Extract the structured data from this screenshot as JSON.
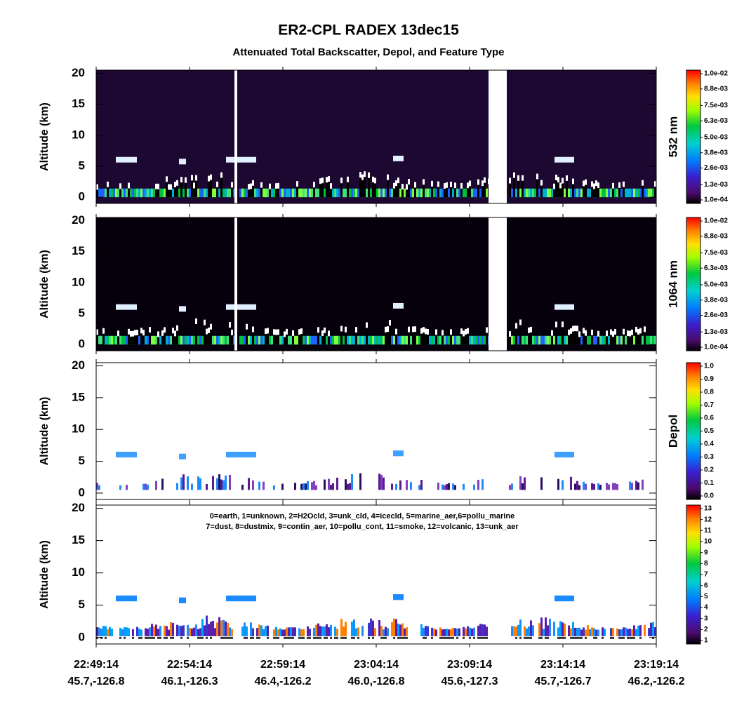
{
  "title": "ER2-CPL RADEX 13dec15",
  "subtitle": "Attenuated Total Backscatter, Depol, and Feature Type",
  "x_axis": {
    "times": [
      "22:49:14",
      "22:54:14",
      "22:59:14",
      "23:04:14",
      "23:09:14",
      "23:14:14",
      "23:19:14"
    ],
    "locations": [
      "45.7,-126.8",
      "46.1,-126.3",
      "46.4,-126.2",
      "46.0,-126.8",
      "45.6,-127.3",
      "45.7,-126.7",
      "46.2,-126.2"
    ]
  },
  "chart_data": [
    {
      "type": "heatmap",
      "ylabel": "Altitude (km)",
      "ylim": [
        -1,
        20.5
      ],
      "yticks": [
        0,
        5,
        10,
        15,
        20
      ],
      "colorbar_label": "532 nm",
      "clim": [
        0.0001,
        0.01
      ],
      "colorbar_ticks": [
        {
          "value": 0.01,
          "label": "1.0e-02"
        },
        {
          "value": 0.0088,
          "label": "8.8e-03"
        },
        {
          "value": 0.0075,
          "label": "7.5e-03"
        },
        {
          "value": 0.0063,
          "label": "6.3e-03"
        },
        {
          "value": 0.005,
          "label": "5.0e-03"
        },
        {
          "value": 0.0038,
          "label": "3.8e-03"
        },
        {
          "value": 0.0026,
          "label": "2.6e-03"
        },
        {
          "value": 0.0013,
          "label": "1.3e-03"
        },
        {
          "value": 0.0001,
          "label": "1.0e-04"
        }
      ]
    },
    {
      "type": "heatmap",
      "ylabel": "Altitude (km)",
      "ylim": [
        -1,
        20.5
      ],
      "yticks": [
        0,
        5,
        10,
        15,
        20
      ],
      "colorbar_label": "1064 nm",
      "clim": [
        0.0001,
        0.01
      ],
      "colorbar_ticks": [
        {
          "value": 0.01,
          "label": "1.0e-02"
        },
        {
          "value": 0.0088,
          "label": "8.8e-03"
        },
        {
          "value": 0.0075,
          "label": "7.5e-03"
        },
        {
          "value": 0.0063,
          "label": "6.3e-03"
        },
        {
          "value": 0.005,
          "label": "5.0e-03"
        },
        {
          "value": 0.0038,
          "label": "3.8e-03"
        },
        {
          "value": 0.0026,
          "label": "2.6e-03"
        },
        {
          "value": 0.0013,
          "label": "1.3e-03"
        },
        {
          "value": 0.0001,
          "label": "1.0e-04"
        }
      ]
    },
    {
      "type": "heatmap",
      "ylabel": "Altitude (km)",
      "ylim": [
        -1,
        20.5
      ],
      "yticks": [
        0,
        5,
        10,
        15,
        20
      ],
      "colorbar_label": "Depol",
      "clim": [
        0,
        1
      ],
      "colorbar_ticks": [
        {
          "value": 1,
          "label": "1.0"
        },
        0.9,
        0.8,
        0.7,
        0.6,
        0.5,
        0.4,
        0.3,
        0.2,
        0.1,
        {
          "value": 0,
          "label": "0.0"
        }
      ]
    },
    {
      "type": "heatmap",
      "ylabel": "Altitude (km)",
      "ylim": [
        -1,
        20.5
      ],
      "yticks": [
        0,
        5,
        10,
        15,
        20
      ],
      "clim": [
        1,
        13
      ],
      "colorbar_ticks": [
        13,
        12,
        11,
        10,
        9,
        8,
        7,
        6,
        5,
        4,
        3,
        2,
        1
      ],
      "annotations": [
        "0=earth, 1=unknown, 2=H2Ocld, 3=unk_cld, 4=icecld, 5=marine_aer,6=pollu_marine",
        "7=dust, 8=dustmix, 9=contin_aer, 10=pollu_cont, 11=smoke, 12=volcanic, 13=unk_aer"
      ]
    }
  ]
}
